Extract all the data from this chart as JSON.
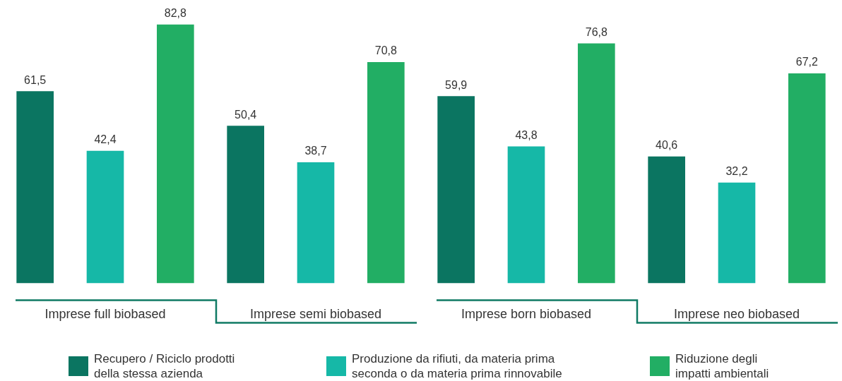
{
  "chart_data": {
    "type": "bar",
    "categories": [
      "Imprese full biobased",
      "Imprese semi biobased",
      "Imprese born biobased",
      "Imprese neo biobased"
    ],
    "series": [
      {
        "name": "Recupero / Riciclo prodotti della stessa azienda",
        "color": "#0b7561",
        "values": [
          61.5,
          50.4,
          59.9,
          40.6
        ],
        "value_labels": [
          "61,5",
          "50,4",
          "59,9",
          "40,6"
        ]
      },
      {
        "name": "Produzione da rifiuti, da materia prima seconda o da materia prima rinnovabile",
        "color": "#16b8a7",
        "values": [
          42.4,
          38.7,
          43.8,
          32.2
        ],
        "value_labels": [
          "42,4",
          "38,7",
          "43,8",
          "32,2"
        ]
      },
      {
        "name": "Riduzione degli impatti ambientali",
        "color": "#22ae64",
        "values": [
          82.8,
          70.8,
          76.8,
          67.2
        ],
        "value_labels": [
          "82,8",
          "70,8",
          "76,8",
          "67,2"
        ]
      }
    ],
    "legend": "bottom",
    "tick_labels": "x"
  }
}
